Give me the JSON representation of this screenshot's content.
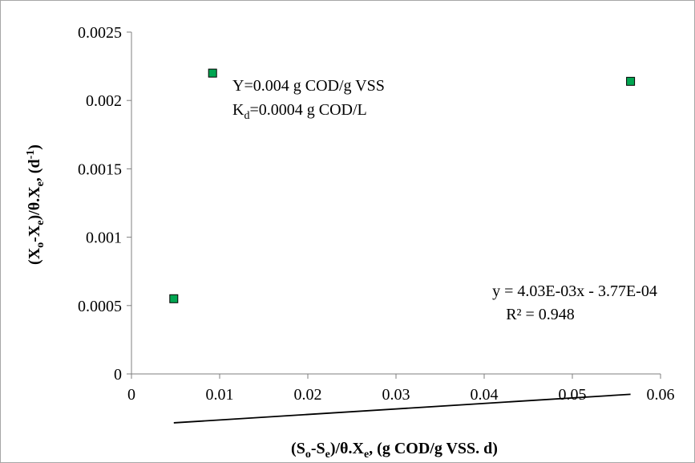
{
  "chart_data": {
    "type": "scatter",
    "title": "",
    "xlabel": {
      "parts": [
        [
          "(S",
          ""
        ],
        [
          "o",
          "sub"
        ],
        [
          "-S",
          ""
        ],
        [
          "e",
          "sub"
        ],
        [
          ")/θ.X",
          ""
        ],
        [
          "e",
          "sub"
        ],
        [
          ", (g COD/g VSS. d)",
          ""
        ]
      ]
    },
    "ylabel": {
      "parts": [
        [
          "(X",
          ""
        ],
        [
          "o",
          "sub"
        ],
        [
          "-X",
          ""
        ],
        [
          "e",
          "sub"
        ],
        [
          ")/θ.X",
          ""
        ],
        [
          "e",
          "sub"
        ],
        [
          ", (d",
          ""
        ],
        [
          "-1",
          "sup"
        ],
        [
          ")",
          ""
        ]
      ]
    },
    "xlim": [
      0,
      0.06
    ],
    "ylim": [
      0,
      0.0025
    ],
    "x_ticks": [
      0,
      0.01,
      0.02,
      0.03,
      0.04,
      0.05,
      0.06
    ],
    "x_tick_labels": [
      "0",
      "0.01",
      "0.02",
      "0.03",
      "0.04",
      "0.05",
      "0.06"
    ],
    "y_ticks": [
      0,
      0.0005,
      0.001,
      0.0015,
      0.002,
      0.0025
    ],
    "y_tick_labels": [
      "0",
      "0.0005",
      "0.001",
      "0.0015",
      "0.002",
      "0.0025"
    ],
    "grid": false,
    "series": [
      {
        "x": [
          0.0048,
          0.0092,
          0.0566
        ],
        "y": [
          0.00055,
          0.0022,
          0.00214
        ],
        "marker_color": "#00a651"
      }
    ],
    "trendline": {
      "slope": 0.00403,
      "intercept": -0.000377,
      "x_start": 0.0048,
      "x_end": 0.0566
    },
    "annotations": {
      "params_line1": {
        "parts": [
          [
            "Y=0.004 g COD/g VSS",
            ""
          ]
        ]
      },
      "params_line2": {
        "parts": [
          [
            "K",
            ""
          ],
          [
            "d",
            "sub"
          ],
          [
            "=0.0004 g COD/L",
            ""
          ]
        ]
      },
      "equation": "y = 4.03E-03x - 3.77E-04",
      "r2": "R² = 0.948"
    }
  }
}
